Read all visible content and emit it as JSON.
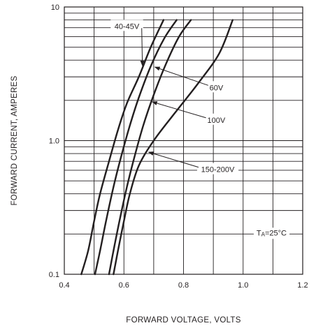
{
  "chart_data": {
    "type": "line",
    "xlabel": "FORWARD VOLTAGE, VOLTS",
    "ylabel": "FORWARD CURRENT, AMPERES",
    "xlim": [
      0.4,
      1.2
    ],
    "ylim": [
      0.1,
      10
    ],
    "yscale": "log",
    "grid": true,
    "x_ticks": [
      {
        "value": 0.4,
        "label": "0.4"
      },
      {
        "value": 0.6,
        "label": "0.6"
      },
      {
        "value": 0.8,
        "label": "0.8"
      },
      {
        "value": 1.0,
        "label": "1.0"
      },
      {
        "value": 1.2,
        "label": "1.2"
      }
    ],
    "y_ticks": [
      {
        "value": 0.1,
        "label": "0.1"
      },
      {
        "value": 1.0,
        "label": "1.0"
      },
      {
        "value": 10,
        "label": "10"
      }
    ],
    "annotation": {
      "prefix": "T",
      "subscript": "A",
      "text": "=25°C"
    },
    "series": [
      {
        "name": "40-45V",
        "color": "#231f20",
        "points": [
          [
            0.457,
            0.1
          ],
          [
            0.48,
            0.15
          ],
          [
            0.5,
            0.25
          ],
          [
            0.52,
            0.4
          ],
          [
            0.55,
            0.7
          ],
          [
            0.58,
            1.2
          ],
          [
            0.61,
            1.9
          ],
          [
            0.65,
            3.0
          ],
          [
            0.69,
            5.0
          ],
          [
            0.733,
            8.0
          ]
        ]
      },
      {
        "name": "60V",
        "color": "#231f20",
        "points": [
          [
            0.503,
            0.1
          ],
          [
            0.52,
            0.15
          ],
          [
            0.54,
            0.25
          ],
          [
            0.565,
            0.45
          ],
          [
            0.59,
            0.75
          ],
          [
            0.62,
            1.3
          ],
          [
            0.65,
            2.1
          ],
          [
            0.69,
            3.6
          ],
          [
            0.735,
            5.8
          ],
          [
            0.777,
            8.0
          ]
        ]
      },
      {
        "name": "100V",
        "color": "#231f20",
        "points": [
          [
            0.55,
            0.1
          ],
          [
            0.565,
            0.15
          ],
          [
            0.585,
            0.25
          ],
          [
            0.61,
            0.45
          ],
          [
            0.635,
            0.75
          ],
          [
            0.665,
            1.3
          ],
          [
            0.7,
            2.2
          ],
          [
            0.74,
            3.7
          ],
          [
            0.785,
            6.0
          ],
          [
            0.825,
            8.0
          ]
        ]
      },
      {
        "name": "150-200V",
        "color": "#231f20",
        "points": [
          [
            0.565,
            0.1
          ],
          [
            0.58,
            0.15
          ],
          [
            0.6,
            0.25
          ],
          [
            0.62,
            0.4
          ],
          [
            0.65,
            0.65
          ],
          [
            0.7,
            1.0
          ],
          [
            0.77,
            1.6
          ],
          [
            0.85,
            2.7
          ],
          [
            0.92,
            4.5
          ],
          [
            0.965,
            8.0
          ]
        ]
      }
    ],
    "labels": [
      {
        "series": "40-45V",
        "text": "40-45V",
        "anchor": [
          0.61,
          7.2
        ],
        "arrow_to": [
          0.662,
          3.65
        ]
      },
      {
        "series": "60V",
        "text": "60V",
        "anchor": [
          0.91,
          2.5
        ],
        "arrow_to": [
          0.704,
          3.55
        ]
      },
      {
        "series": "100V",
        "text": "100V",
        "anchor": [
          0.91,
          1.43
        ],
        "arrow_to": [
          0.695,
          1.95
        ]
      },
      {
        "series": "150-200V",
        "text": "150-200V",
        "anchor": [
          0.915,
          0.61
        ],
        "arrow_to": [
          0.683,
          0.82
        ]
      }
    ]
  }
}
